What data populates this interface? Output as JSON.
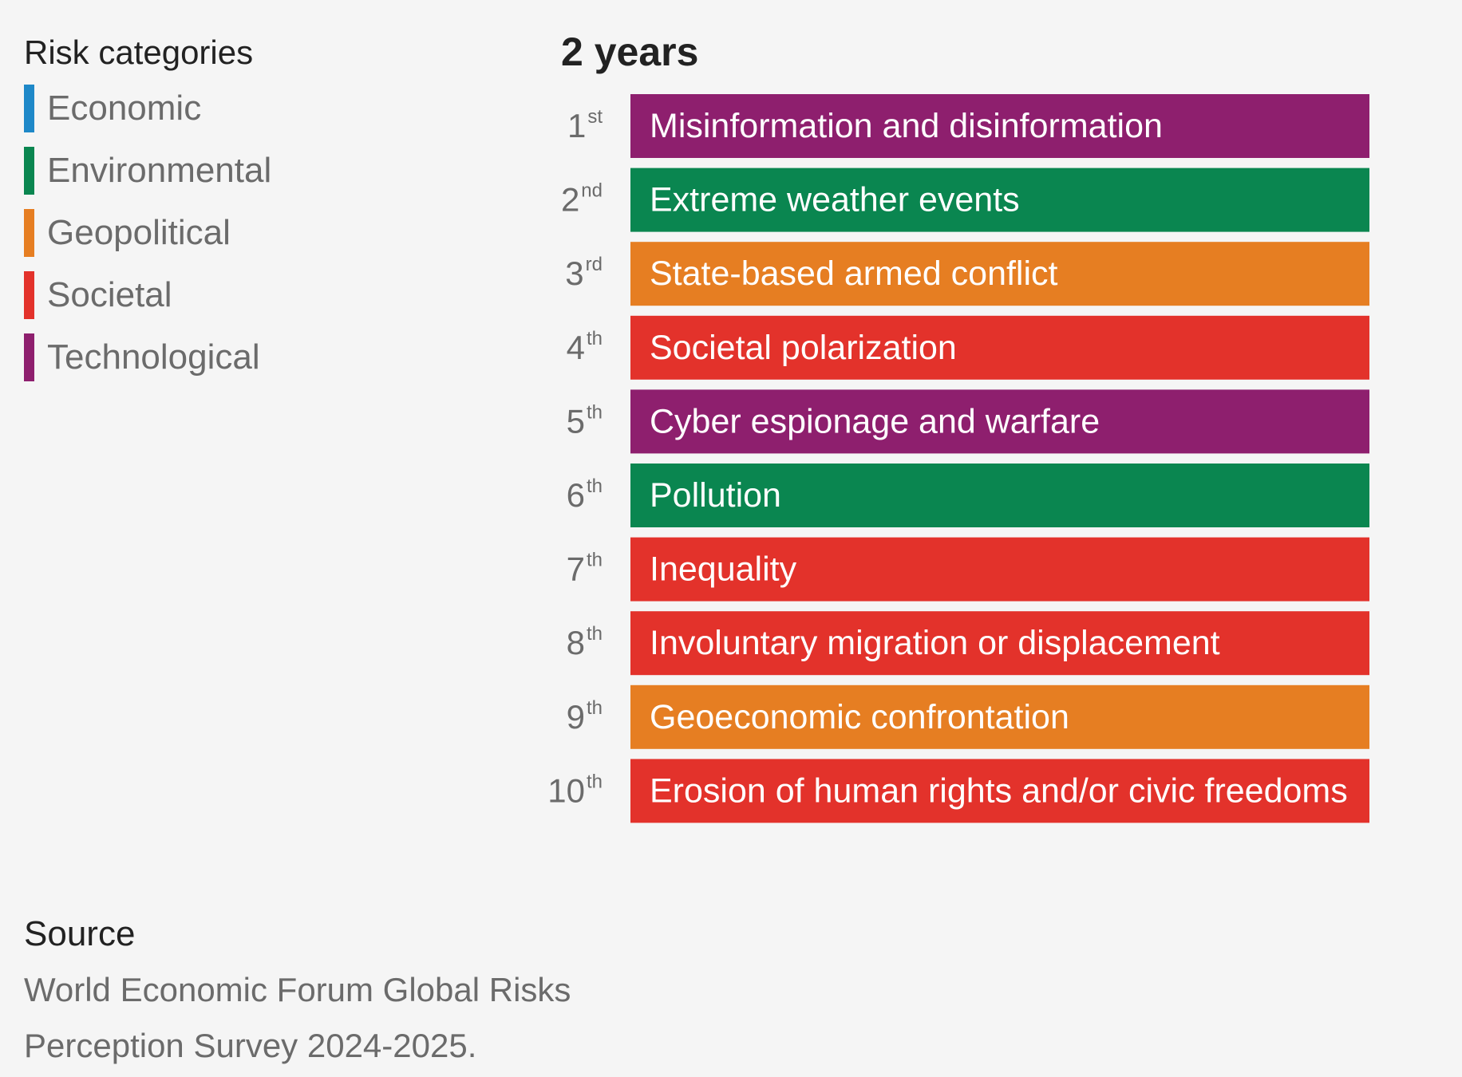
{
  "legend": {
    "title": "Risk categories",
    "items": [
      {
        "label": "Economic",
        "color": "#1e88c8"
      },
      {
        "label": "Environmental",
        "color": "#0a8650"
      },
      {
        "label": "Geopolitical",
        "color": "#e67e22"
      },
      {
        "label": "Societal",
        "color": "#e3322b"
      },
      {
        "label": "Technological",
        "color": "#8e1f6e"
      }
    ]
  },
  "chart_data": {
    "type": "table",
    "title": "2 years",
    "rows": [
      {
        "rank": "1",
        "suffix": "st",
        "risk": "Misinformation and disinformation",
        "category": "Technological"
      },
      {
        "rank": "2",
        "suffix": "nd",
        "risk": "Extreme weather events",
        "category": "Environmental"
      },
      {
        "rank": "3",
        "suffix": "rd",
        "risk": "State-based armed conflict",
        "category": "Geopolitical"
      },
      {
        "rank": "4",
        "suffix": "th",
        "risk": "Societal polarization",
        "category": "Societal"
      },
      {
        "rank": "5",
        "suffix": "th",
        "risk": "Cyber espionage and warfare",
        "category": "Technological"
      },
      {
        "rank": "6",
        "suffix": "th",
        "risk": "Pollution",
        "category": "Environmental"
      },
      {
        "rank": "7",
        "suffix": "th",
        "risk": "Inequality",
        "category": "Societal"
      },
      {
        "rank": "8",
        "suffix": "th",
        "risk": "Involuntary migration or displacement",
        "category": "Societal"
      },
      {
        "rank": "9",
        "suffix": "th",
        "risk": "Geoeconomic confrontation",
        "category": "Geopolitical"
      },
      {
        "rank": "10",
        "suffix": "th",
        "risk": "Erosion of human rights and/or civic freedoms",
        "category": "Societal"
      }
    ]
  },
  "source": {
    "title": "Source",
    "text": "World Economic Forum Global Risks Perception Survey 2024-2025."
  }
}
